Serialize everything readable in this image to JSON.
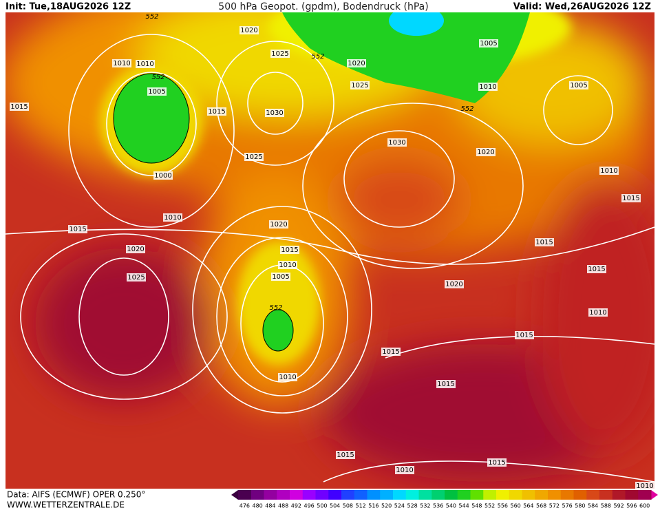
{
  "header": {
    "init": "Init: Tue,18AUG2026 12Z",
    "title": "500 hPa Geopot. (gpdm), Bodendruck (hPa)",
    "valid": "Valid: Wed,26AUG2026 12Z"
  },
  "footer": {
    "source": "Data: AIFS (ECMWF) OPER 0.250°",
    "website": "WWW.WETTERZENTRALE.DE"
  },
  "isobar_labels": [
    552,
    1020,
    1025,
    552,
    1010,
    1010,
    552,
    1005,
    1015,
    1030,
    1015,
    1020,
    1025,
    1005,
    1010,
    552,
    1005,
    1030,
    1020,
    1025,
    1000,
    1010,
    1015,
    1010,
    1015,
    1020,
    1015,
    1020,
    1015,
    1010,
    1005,
    1025,
    1015,
    1020,
    552,
    1010,
    1015,
    1015,
    1010,
    1015,
    1015,
    1015,
    1010,
    1010
  ],
  "colorbar": {
    "values": [
      476,
      480,
      484,
      488,
      492,
      496,
      500,
      504,
      508,
      512,
      516,
      520,
      524,
      528,
      532,
      536,
      540,
      544,
      548,
      552,
      556,
      560,
      564,
      568,
      572,
      576,
      580,
      584,
      588,
      592,
      596,
      600
    ],
    "colors": [
      "#4a0050",
      "#700080",
      "#9400a0",
      "#b000c0",
      "#d000e0",
      "#9a00ff",
      "#7000ff",
      "#4000ff",
      "#2040ff",
      "#1060ff",
      "#0090ff",
      "#00b0ff",
      "#00d8ff",
      "#00f0e0",
      "#00e0a0",
      "#00d070",
      "#00c040",
      "#20d020",
      "#60e000",
      "#c0f000",
      "#f0f000",
      "#f0d800",
      "#f0c000",
      "#f0a800",
      "#f09000",
      "#e87800",
      "#e06000",
      "#d84818",
      "#c83020",
      "#b01828",
      "#a00830",
      "#a00050"
    ]
  }
}
